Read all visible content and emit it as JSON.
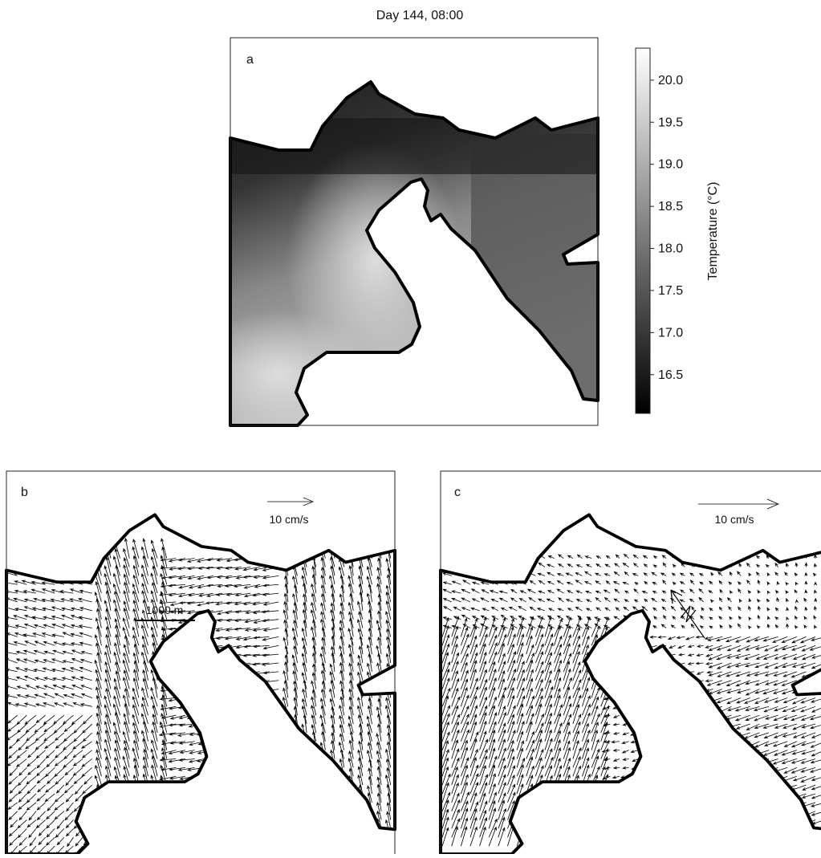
{
  "title": "Day 144, 08:00",
  "panels": [
    {
      "label": "a"
    },
    {
      "label": "b",
      "scale_arrow": "10 cm/s",
      "scale_bar": "1000 m"
    },
    {
      "label": "c",
      "scale_arrow": "10 cm/s"
    }
  ],
  "colorbar": {
    "label": "Temperature (°C)",
    "lim": [
      16.04,
      20.38
    ],
    "ticks": [
      {
        "value": 20,
        "label": "20.0"
      },
      {
        "value": 19.5,
        "label": "19.5"
      },
      {
        "value": 19,
        "label": "19.0"
      },
      {
        "value": 18.5,
        "label": "18.5"
      },
      {
        "value": 18,
        "label": "18.0"
      },
      {
        "value": 17.5,
        "label": "17.5"
      },
      {
        "value": 17,
        "label": "17.0"
      },
      {
        "value": 16.5,
        "label": "16.5"
      }
    ]
  }
}
